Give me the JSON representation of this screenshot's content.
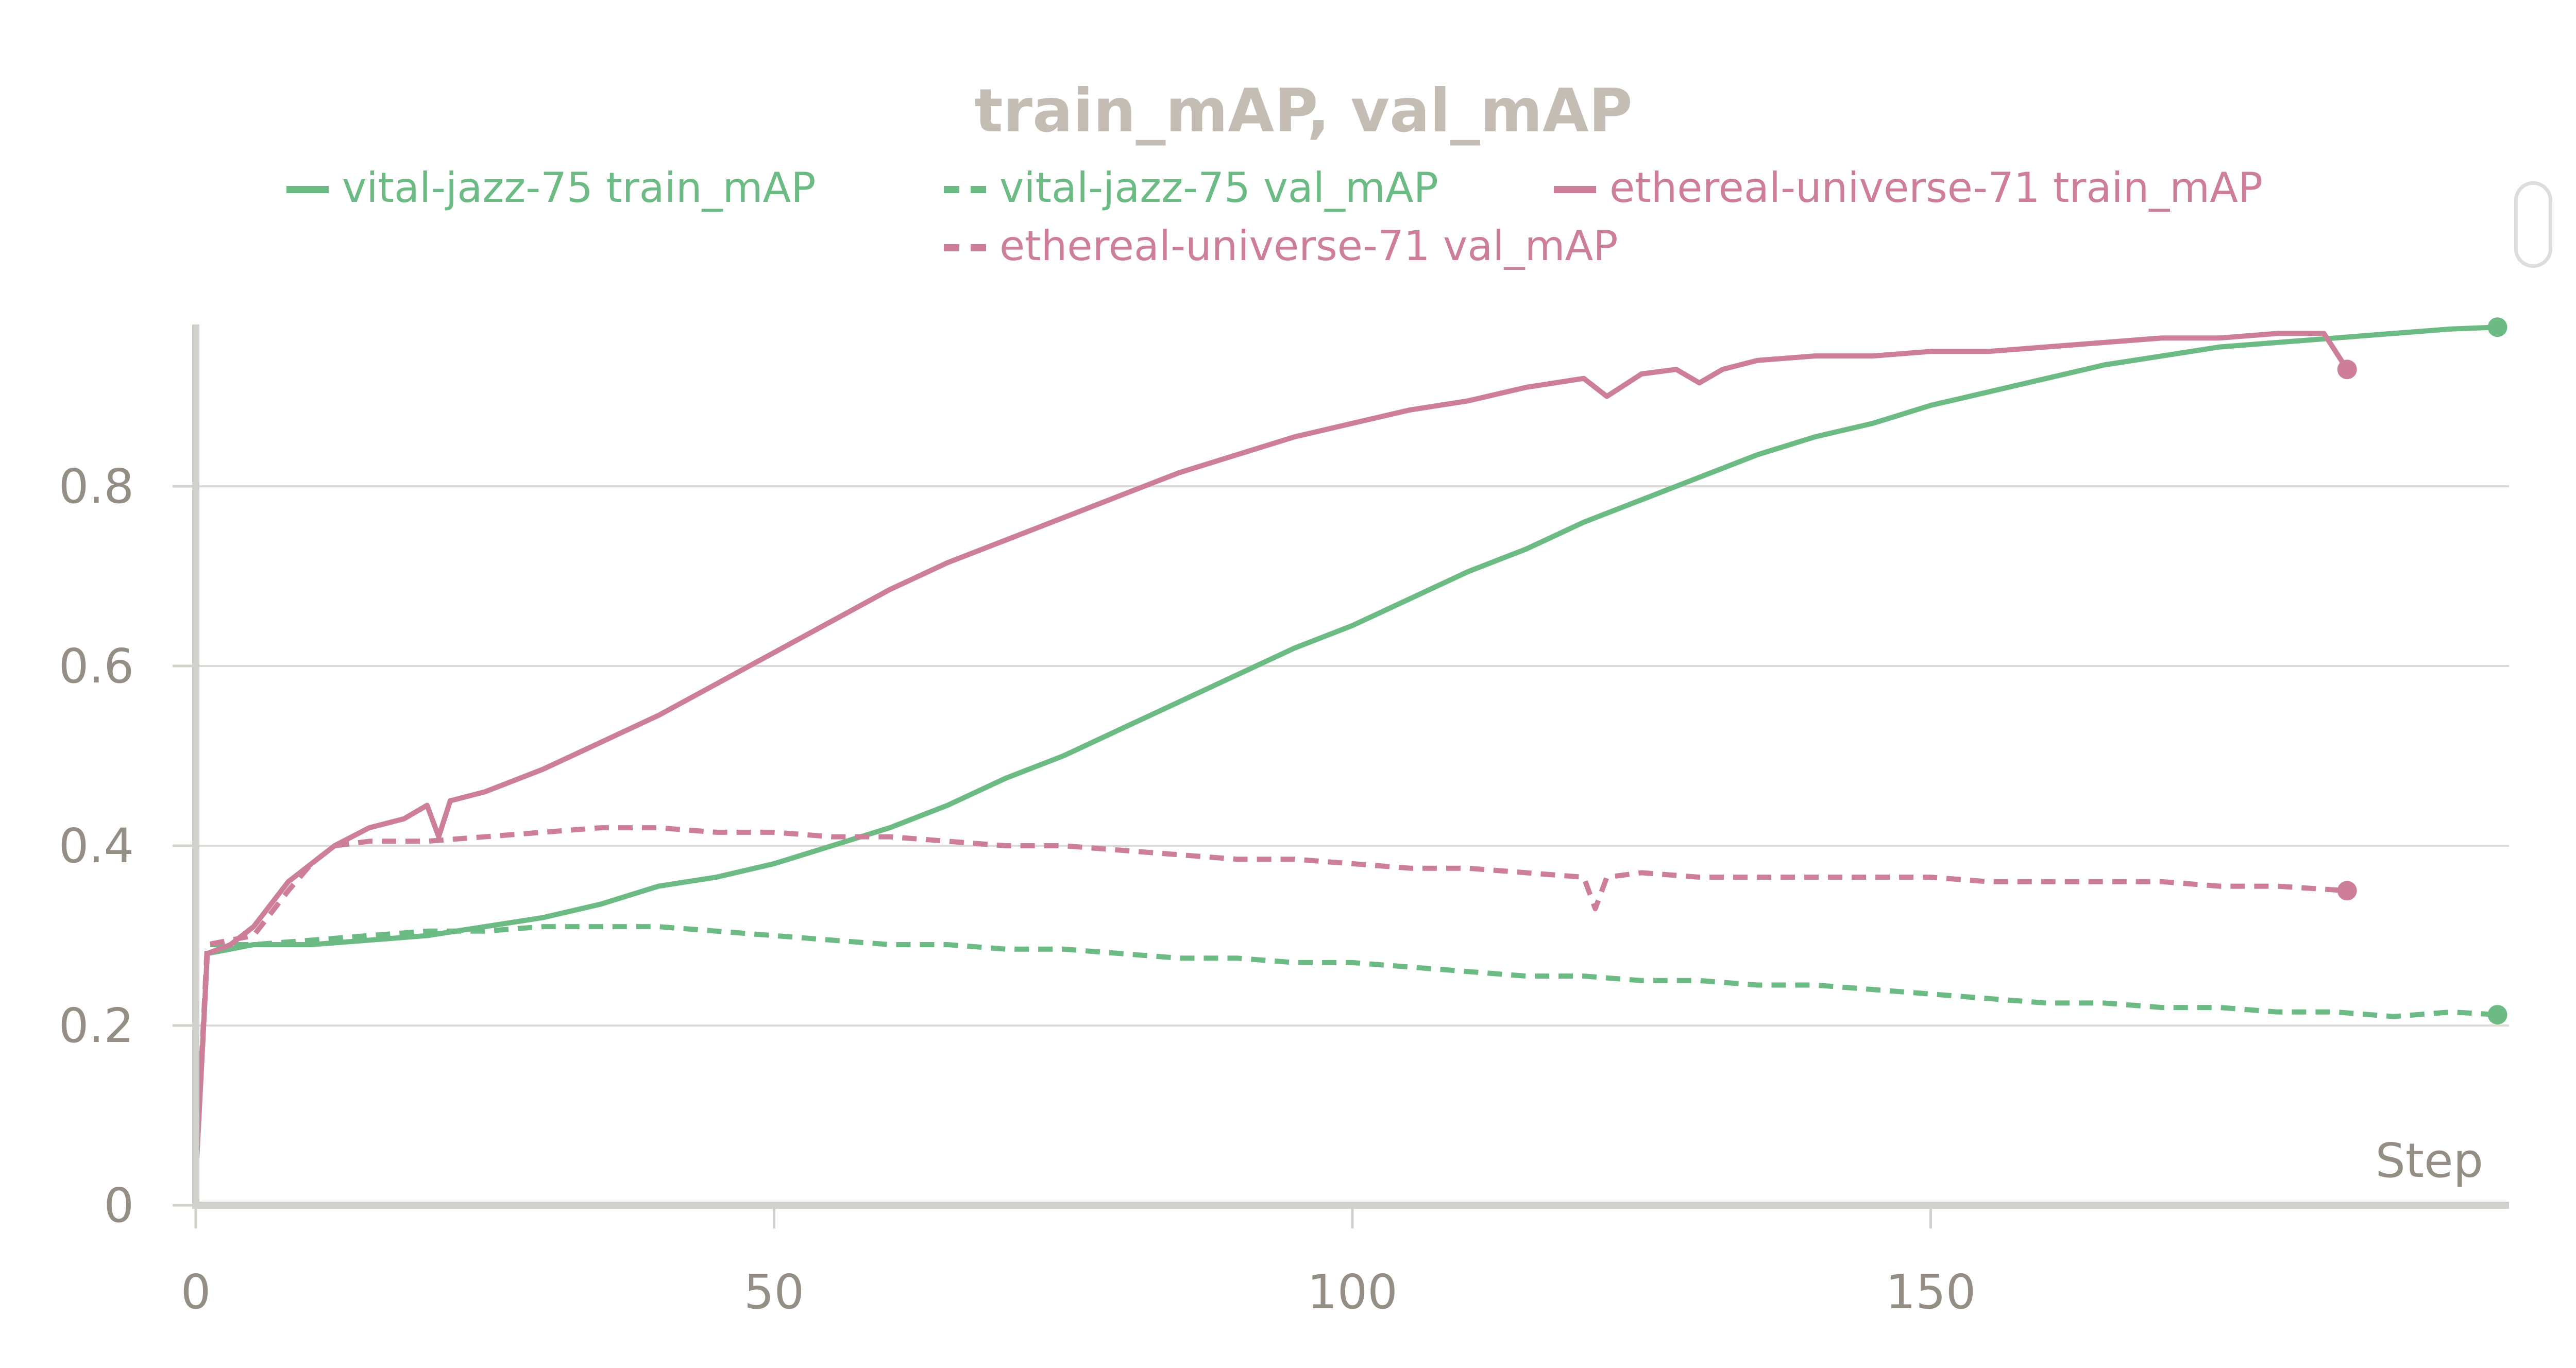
{
  "chart_data": {
    "type": "line",
    "title": "train_mAP, val_mAP",
    "xlabel": "Step",
    "ylabel": "",
    "xlim": [
      0,
      200
    ],
    "ylim": [
      0,
      0.98
    ],
    "x_ticks": [
      0,
      50,
      100,
      150
    ],
    "y_ticks": [
      0,
      0.2,
      0.4,
      0.6,
      0.8
    ],
    "grid": true,
    "legend": "top",
    "series": [
      {
        "name": "vital-jazz-75 train_mAP",
        "color": "#6dbb84",
        "dash": "solid",
        "points": [
          [
            0,
            0.03
          ],
          [
            1,
            0.28
          ],
          [
            5,
            0.29
          ],
          [
            10,
            0.29
          ],
          [
            15,
            0.295
          ],
          [
            20,
            0.3
          ],
          [
            25,
            0.31
          ],
          [
            30,
            0.32
          ],
          [
            35,
            0.335
          ],
          [
            40,
            0.355
          ],
          [
            45,
            0.365
          ],
          [
            50,
            0.38
          ],
          [
            55,
            0.4
          ],
          [
            60,
            0.42
          ],
          [
            65,
            0.445
          ],
          [
            70,
            0.475
          ],
          [
            75,
            0.5
          ],
          [
            80,
            0.53
          ],
          [
            85,
            0.56
          ],
          [
            90,
            0.59
          ],
          [
            95,
            0.62
          ],
          [
            100,
            0.645
          ],
          [
            105,
            0.675
          ],
          [
            110,
            0.705
          ],
          [
            115,
            0.73
          ],
          [
            120,
            0.76
          ],
          [
            125,
            0.785
          ],
          [
            130,
            0.81
          ],
          [
            135,
            0.835
          ],
          [
            140,
            0.855
          ],
          [
            145,
            0.87
          ],
          [
            150,
            0.89
          ],
          [
            155,
            0.905
          ],
          [
            160,
            0.92
          ],
          [
            165,
            0.935
          ],
          [
            170,
            0.945
          ],
          [
            175,
            0.955
          ],
          [
            180,
            0.96
          ],
          [
            185,
            0.965
          ],
          [
            190,
            0.97
          ],
          [
            195,
            0.975
          ],
          [
            199,
            0.977
          ]
        ],
        "end_marker": true
      },
      {
        "name": "vital-jazz-75 val_mAP",
        "color": "#6dbb84",
        "dash": "dashed",
        "points": [
          [
            0,
            0.03
          ],
          [
            1,
            0.29
          ],
          [
            5,
            0.29
          ],
          [
            10,
            0.295
          ],
          [
            15,
            0.3
          ],
          [
            20,
            0.305
          ],
          [
            25,
            0.305
          ],
          [
            30,
            0.31
          ],
          [
            35,
            0.31
          ],
          [
            40,
            0.31
          ],
          [
            45,
            0.305
          ],
          [
            50,
            0.3
          ],
          [
            55,
            0.295
          ],
          [
            60,
            0.29
          ],
          [
            65,
            0.29
          ],
          [
            70,
            0.285
          ],
          [
            75,
            0.285
          ],
          [
            80,
            0.28
          ],
          [
            85,
            0.275
          ],
          [
            90,
            0.275
          ],
          [
            95,
            0.27
          ],
          [
            100,
            0.27
          ],
          [
            105,
            0.265
          ],
          [
            110,
            0.26
          ],
          [
            115,
            0.255
          ],
          [
            120,
            0.255
          ],
          [
            125,
            0.25
          ],
          [
            130,
            0.25
          ],
          [
            135,
            0.245
          ],
          [
            140,
            0.245
          ],
          [
            145,
            0.24
          ],
          [
            150,
            0.235
          ],
          [
            155,
            0.23
          ],
          [
            160,
            0.225
          ],
          [
            165,
            0.225
          ],
          [
            170,
            0.22
          ],
          [
            175,
            0.22
          ],
          [
            180,
            0.215
          ],
          [
            185,
            0.215
          ],
          [
            190,
            0.21
          ],
          [
            195,
            0.215
          ],
          [
            199,
            0.212
          ]
        ],
        "end_marker": true
      },
      {
        "name": "ethereal-universe-71 train_mAP",
        "color": "#cd7f99",
        "dash": "solid",
        "points": [
          [
            0,
            0.03
          ],
          [
            1,
            0.28
          ],
          [
            3,
            0.29
          ],
          [
            5,
            0.31
          ],
          [
            8,
            0.36
          ],
          [
            10,
            0.38
          ],
          [
            12,
            0.4
          ],
          [
            15,
            0.42
          ],
          [
            18,
            0.43
          ],
          [
            20,
            0.445
          ],
          [
            21,
            0.41
          ],
          [
            22,
            0.45
          ],
          [
            25,
            0.46
          ],
          [
            30,
            0.485
          ],
          [
            35,
            0.515
          ],
          [
            40,
            0.545
          ],
          [
            45,
            0.58
          ],
          [
            50,
            0.615
          ],
          [
            55,
            0.65
          ],
          [
            60,
            0.685
          ],
          [
            65,
            0.715
          ],
          [
            70,
            0.74
          ],
          [
            75,
            0.765
          ],
          [
            80,
            0.79
          ],
          [
            85,
            0.815
          ],
          [
            90,
            0.835
          ],
          [
            95,
            0.855
          ],
          [
            100,
            0.87
          ],
          [
            105,
            0.885
          ],
          [
            110,
            0.895
          ],
          [
            115,
            0.91
          ],
          [
            120,
            0.92
          ],
          [
            122,
            0.9
          ],
          [
            125,
            0.925
          ],
          [
            128,
            0.93
          ],
          [
            130,
            0.915
          ],
          [
            132,
            0.93
          ],
          [
            135,
            0.94
          ],
          [
            140,
            0.945
          ],
          [
            145,
            0.945
          ],
          [
            150,
            0.95
          ],
          [
            155,
            0.95
          ],
          [
            160,
            0.955
          ],
          [
            165,
            0.96
          ],
          [
            170,
            0.965
          ],
          [
            175,
            0.965
          ],
          [
            180,
            0.97
          ],
          [
            184,
            0.97
          ],
          [
            186,
            0.93
          ]
        ],
        "end_marker": true
      },
      {
        "name": "ethereal-universe-71 val_mAP",
        "color": "#cd7f99",
        "dash": "dashed",
        "points": [
          [
            0,
            0.03
          ],
          [
            1,
            0.29
          ],
          [
            5,
            0.3
          ],
          [
            8,
            0.35
          ],
          [
            10,
            0.38
          ],
          [
            12,
            0.4
          ],
          [
            15,
            0.405
          ],
          [
            20,
            0.405
          ],
          [
            25,
            0.41
          ],
          [
            30,
            0.415
          ],
          [
            35,
            0.42
          ],
          [
            40,
            0.42
          ],
          [
            45,
            0.415
          ],
          [
            50,
            0.415
          ],
          [
            55,
            0.41
          ],
          [
            60,
            0.41
          ],
          [
            65,
            0.405
          ],
          [
            70,
            0.4
          ],
          [
            75,
            0.4
          ],
          [
            80,
            0.395
          ],
          [
            85,
            0.39
          ],
          [
            90,
            0.385
          ],
          [
            95,
            0.385
          ],
          [
            100,
            0.38
          ],
          [
            105,
            0.375
          ],
          [
            110,
            0.375
          ],
          [
            115,
            0.37
          ],
          [
            120,
            0.365
          ],
          [
            121,
            0.33
          ],
          [
            122,
            0.365
          ],
          [
            125,
            0.37
          ],
          [
            130,
            0.365
          ],
          [
            135,
            0.365
          ],
          [
            140,
            0.365
          ],
          [
            145,
            0.365
          ],
          [
            150,
            0.365
          ],
          [
            155,
            0.36
          ],
          [
            160,
            0.36
          ],
          [
            165,
            0.36
          ],
          [
            170,
            0.36
          ],
          [
            175,
            0.355
          ],
          [
            180,
            0.355
          ],
          [
            186,
            0.35
          ]
        ],
        "end_marker": true
      }
    ]
  }
}
